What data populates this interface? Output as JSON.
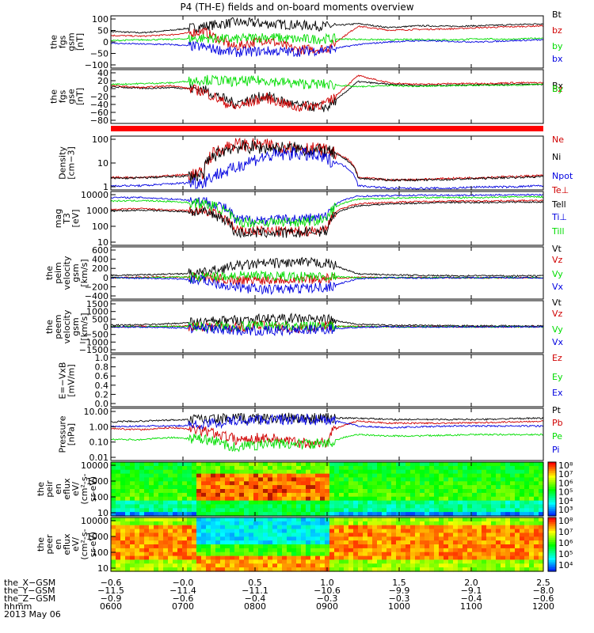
{
  "title": "P4 (TH-E) fields and on-board moments overview",
  "date_label": "2013 May 06",
  "colors": {
    "black": "#000000",
    "red": "#d00000",
    "green": "#00dd00",
    "blue": "#0000e0"
  },
  "chart_data": [
    {
      "type": "line",
      "ylabel": [
        "the",
        "fgs",
        "gsm",
        "[nT]"
      ],
      "yticks": [
        "100",
        "50",
        "0",
        "−50",
        "−100"
      ],
      "ylim": [
        -100,
        100
      ],
      "series": [
        {
          "name": "Bt",
          "color": "black",
          "values": [
            40,
            35,
            45,
            60,
            75,
            70,
            65,
            60,
            70,
            55,
            62,
            60,
            62,
            66,
            70
          ]
        },
        {
          "name": "bz",
          "color": "red",
          "values": [
            25,
            22,
            28,
            40,
            -20,
            10,
            -30,
            -25,
            60,
            45,
            48,
            50,
            55,
            58,
            62
          ]
        },
        {
          "name": "by",
          "color": "green",
          "values": [
            5,
            8,
            10,
            15,
            10,
            20,
            10,
            12,
            10,
            8,
            10,
            8,
            12,
            10,
            15
          ]
        },
        {
          "name": "bx",
          "color": "blue",
          "values": [
            -5,
            -8,
            -10,
            -20,
            -40,
            -35,
            -38,
            -30,
            -10,
            0,
            5,
            2,
            0,
            5,
            8
          ]
        }
      ]
    },
    {
      "type": "line",
      "ylabel": [
        "the",
        "fgs",
        "gse",
        "[nT]"
      ],
      "yticks": [
        "40",
        "20",
        "0",
        "−20",
        "−40",
        "−60",
        "−80"
      ],
      "ylim": [
        -90,
        45
      ],
      "series": [
        {
          "name": "Bx",
          "color": "black",
          "values": [
            2,
            -2,
            0,
            -5,
            -40,
            -20,
            -45,
            -50,
            15,
            8,
            5,
            6,
            7,
            8,
            8
          ]
        },
        {
          "name": "Bz",
          "color": "red",
          "values": [
            5,
            0,
            5,
            -10,
            -50,
            -25,
            -50,
            -40,
            30,
            12,
            8,
            10,
            10,
            12,
            12
          ]
        },
        {
          "name": "By",
          "color": "green",
          "values": [
            8,
            10,
            12,
            20,
            15,
            18,
            10,
            8,
            2,
            5,
            3,
            5,
            6,
            6,
            8
          ]
        }
      ]
    },
    {
      "type": "line",
      "ylabel": [
        "Density",
        "[cm−3]"
      ],
      "yticks": [
        "100",
        "10",
        "1"
      ],
      "ylim": [
        0.5,
        200
      ],
      "log": true,
      "series": [
        {
          "name": "Ne",
          "color": "red",
          "values": [
            2,
            2,
            2.5,
            3,
            80,
            70,
            60,
            40,
            2,
            1.5,
            1.6,
            1.8,
            2,
            2.2,
            2.5
          ]
        },
        {
          "name": "Ni",
          "color": "black",
          "values": [
            1.8,
            1.9,
            2.2,
            2.5,
            60,
            55,
            50,
            35,
            1.8,
            1.5,
            1.5,
            1.6,
            1.8,
            2,
            2.2
          ]
        },
        {
          "name": "Npot",
          "color": "blue",
          "values": [
            0.8,
            0.8,
            1,
            1.2,
            5,
            20,
            30,
            15,
            0.8,
            0.6,
            0.6,
            0.6,
            0.7,
            0.7,
            0.8
          ]
        }
      ]
    },
    {
      "type": "line",
      "ylabel": [
        "mag",
        "T3",
        "[eV]"
      ],
      "yticks": [
        "10000",
        "1000",
        "100",
        "10"
      ],
      "ylim": [
        5,
        12000
      ],
      "log": true,
      "series": [
        {
          "name": "Te⊥",
          "color": "red",
          "values": [
            900,
            1000,
            800,
            700,
            40,
            40,
            35,
            50,
            2000,
            2500,
            2800,
            3000,
            3000,
            3200,
            3200
          ]
        },
        {
          "name": "Tell",
          "color": "black",
          "values": [
            700,
            800,
            700,
            600,
            30,
            30,
            28,
            40,
            1500,
            2000,
            2200,
            2500,
            2400,
            2600,
            2600
          ]
        },
        {
          "name": "Ti⊥",
          "color": "blue",
          "values": [
            5000,
            5000,
            4000,
            3000,
            200,
            200,
            220,
            300,
            6000,
            6500,
            7000,
            7000,
            7000,
            7500,
            7500
          ]
        },
        {
          "name": "Till",
          "color": "green",
          "values": [
            3000,
            3200,
            2800,
            2000,
            150,
            140,
            150,
            200,
            4000,
            4500,
            5000,
            5000,
            5000,
            5500,
            5500
          ]
        }
      ]
    },
    {
      "type": "line",
      "ylabel": [
        "the",
        "peim",
        "velocity",
        "gsm",
        "[km/s]"
      ],
      "yticks": [
        "600",
        "400",
        "200",
        "0",
        "−200",
        "−400"
      ],
      "ylim": [
        -450,
        650
      ],
      "series": [
        {
          "name": "Vt",
          "color": "black",
          "values": [
            50,
            60,
            80,
            100,
            250,
            300,
            320,
            310,
            80,
            60,
            50,
            40,
            45,
            40,
            40
          ]
        },
        {
          "name": "Vz",
          "color": "red",
          "values": [
            0,
            10,
            20,
            0,
            -50,
            -40,
            -30,
            -20,
            10,
            0,
            5,
            0,
            0,
            0,
            0
          ]
        },
        {
          "name": "Vy",
          "color": "green",
          "values": [
            0,
            0,
            10,
            20,
            40,
            30,
            30,
            30,
            0,
            0,
            0,
            0,
            0,
            0,
            0
          ]
        },
        {
          "name": "Vx",
          "color": "blue",
          "values": [
            0,
            -10,
            -20,
            -50,
            -200,
            -250,
            -230,
            -200,
            -20,
            0,
            -10,
            0,
            0,
            0,
            0
          ]
        }
      ]
    },
    {
      "type": "line",
      "ylabel": [
        "the",
        "peem",
        "velocity",
        "gsm",
        "[km/s]"
      ],
      "yticks": [
        "1500",
        "1000",
        "500",
        "0",
        "−500",
        "−1000",
        "−1500"
      ],
      "ylim": [
        -1600,
        1600
      ],
      "series": [
        {
          "name": "Vt",
          "color": "black",
          "values": [
            100,
            120,
            200,
            300,
            400,
            500,
            500,
            450,
            150,
            100,
            80,
            60,
            60,
            50,
            50
          ]
        },
        {
          "name": "Vz",
          "color": "red",
          "values": [
            0,
            20,
            30,
            50,
            -50,
            100,
            -100,
            50,
            20,
            0,
            10,
            0,
            0,
            0,
            0
          ]
        },
        {
          "name": "Vy",
          "color": "green",
          "values": [
            0,
            10,
            20,
            30,
            30,
            50,
            30,
            20,
            10,
            0,
            0,
            0,
            0,
            0,
            0
          ]
        },
        {
          "name": "Vx",
          "color": "blue",
          "values": [
            0,
            -20,
            -50,
            -100,
            -200,
            -250,
            -200,
            -150,
            -30,
            0,
            -10,
            0,
            0,
            0,
            0
          ]
        }
      ]
    },
    {
      "type": "line",
      "ylabel": [
        "E=−VxB",
        "[mV/m]"
      ],
      "yticks": [
        "1.0",
        "0.8",
        "0.6",
        "0.4",
        "0.2",
        "0.0"
      ],
      "ylim": [
        0,
        1
      ],
      "series": [
        {
          "name": "Ez",
          "color": "red",
          "values": []
        },
        {
          "name": "Ey",
          "color": "green",
          "values": []
        },
        {
          "name": "Ex",
          "color": "blue",
          "values": []
        }
      ]
    },
    {
      "type": "line",
      "ylabel": [
        "Pressure",
        "[nPa]"
      ],
      "yticks": [
        "10.00",
        "1.00",
        "0.10",
        "0.01"
      ],
      "ylim": [
        0.008,
        12
      ],
      "log": true,
      "series": [
        {
          "name": "Pt",
          "color": "black",
          "values": [
            1.8,
            2,
            2.3,
            2.5,
            2.8,
            3,
            3,
            3,
            3,
            2.5,
            2.5,
            2.5,
            2.5,
            2.8,
            3
          ]
        },
        {
          "name": "Pb",
          "color": "red",
          "values": [
            0.7,
            0.6,
            0.8,
            0.5,
            0.15,
            0.2,
            0.1,
            0.1,
            2,
            1.5,
            1.5,
            1.5,
            1.6,
            1.8,
            2
          ]
        },
        {
          "name": "Pe",
          "color": "green",
          "values": [
            0.15,
            0.15,
            0.2,
            0.15,
            0.05,
            0.08,
            0.08,
            0.08,
            0.3,
            0.25,
            0.25,
            0.28,
            0.3,
            0.3,
            0.3
          ]
        },
        {
          "name": "Pi",
          "color": "blue",
          "values": [
            0.9,
            1,
            1,
            1.2,
            2,
            2.5,
            2.5,
            2.3,
            1,
            0.8,
            0.9,
            1,
            1,
            1,
            1
          ]
        }
      ]
    },
    {
      "type": "heatmap",
      "ylabel": [
        "the",
        "peir",
        "en",
        "eflux",
        "eV/",
        "(cm²-s-",
        "sr-eV)"
      ],
      "yticks": [
        "10000",
        "1000",
        "100",
        "10"
      ],
      "ylim": [
        8,
        25000
      ],
      "log": true,
      "colorbar_ticks": [
        "10⁸",
        "10⁷",
        "10⁶",
        "10⁵",
        "10⁴",
        "10³"
      ]
    },
    {
      "type": "heatmap",
      "ylabel": [
        "the",
        "peer",
        "en",
        "eflux",
        "eV/",
        "(cm²-s-",
        "sr-eV)"
      ],
      "yticks": [
        "10000",
        "1000",
        "100",
        "10"
      ],
      "ylim": [
        8,
        25000
      ],
      "log": true,
      "colorbar_ticks": [
        "10⁸",
        "10⁷",
        "10⁶",
        "10⁵",
        "10⁴"
      ]
    }
  ],
  "x_axis": {
    "range": [
      "0600",
      "1200"
    ],
    "rows": [
      {
        "label": "the_X−GSM",
        "values": [
          "−0.6",
          "−0.0",
          "0.5",
          "1.0",
          "1.5",
          "2.0",
          "2.5"
        ]
      },
      {
        "label": "the_Y−GSM",
        "values": [
          "−11.5",
          "−11.4",
          "−11.1",
          "−10.6",
          "−9.9",
          "−9.1",
          "−8.0"
        ]
      },
      {
        "label": "the_Z−GSM",
        "values": [
          "−0.9",
          "−0.6",
          "−0.4",
          "−0.3",
          "−0.3",
          "−0.4",
          "−0.6"
        ]
      },
      {
        "label": "hhmm",
        "values": [
          "0600",
          "0700",
          "0800",
          "0900",
          "1000",
          "1100",
          "1200"
        ]
      }
    ]
  }
}
